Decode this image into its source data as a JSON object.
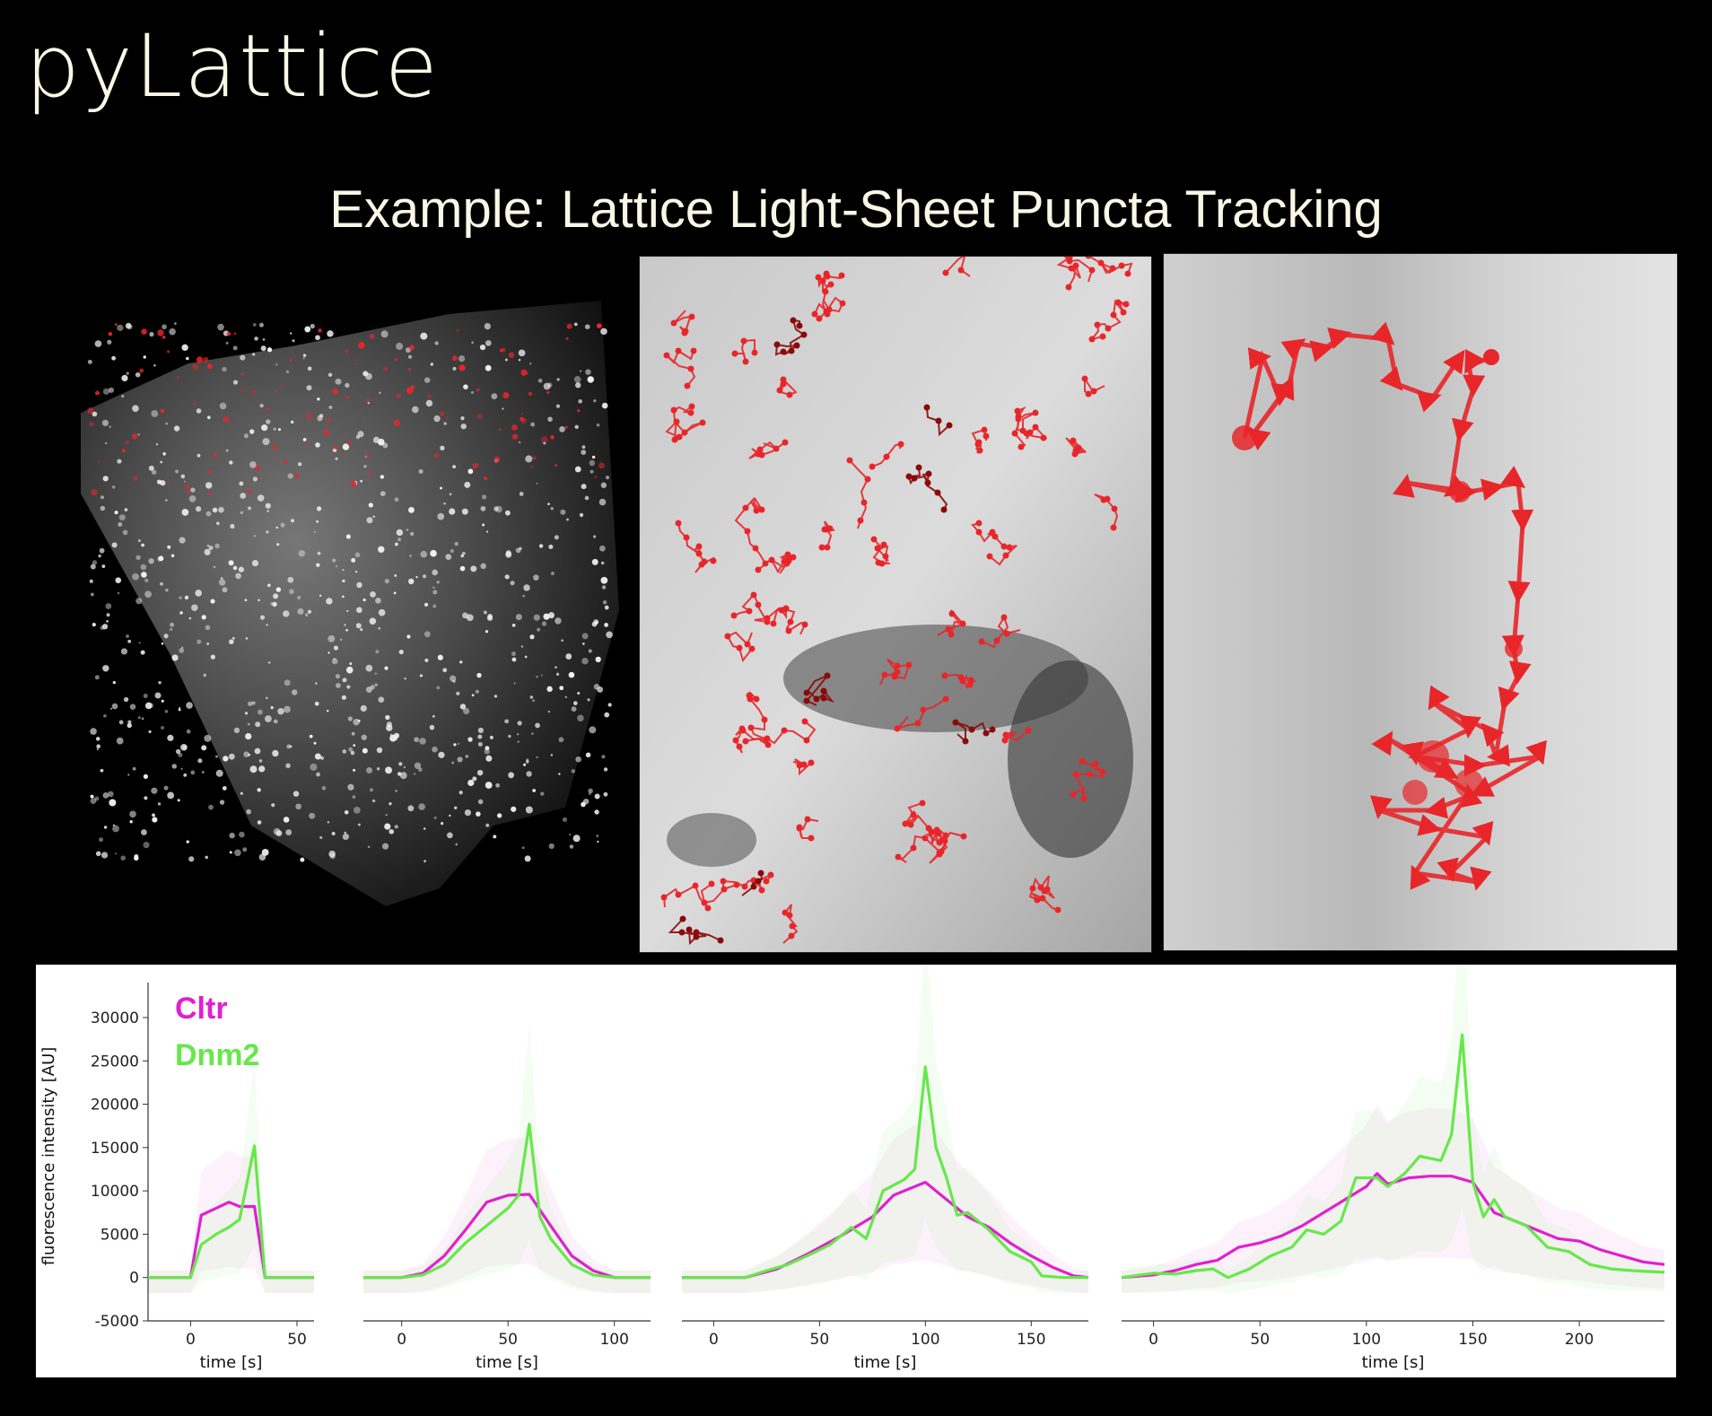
{
  "header": {
    "brand": "pyLattice",
    "subtitle": "Example: Lattice Light-Sheet Puncta Tracking"
  },
  "images": {
    "panel_3d": "3D lattice light-sheet volume with red puncta tracks",
    "panel_tracks": "Grayscale close-up with many red particle trajectories",
    "panel_zoom": "Single zoomed red trajectory with arrow markers"
  },
  "colors": {
    "background": "#000000",
    "text": "#fbf7e6",
    "cltr": "#e020d0",
    "dnm2": "#66e84a",
    "track_red": "#e8262a"
  },
  "chart_data": [
    {
      "type": "line",
      "ylabel": "fluorescence intensity [AU]",
      "xlabel": "time [s]",
      "xlim": [
        -20,
        58
      ],
      "ylim": [
        -5000,
        33000
      ],
      "yticks": [
        -5000,
        0,
        5000,
        10000,
        15000,
        20000,
        25000,
        30000
      ],
      "xticks": [
        0,
        50
      ],
      "legend": [
        "Cltr",
        "Dnm2"
      ],
      "series": [
        {
          "name": "Cltr",
          "x": [
            -20,
            -10,
            0,
            5,
            12,
            18,
            23,
            30,
            35,
            45,
            58
          ],
          "y": [
            0,
            0,
            0,
            7200,
            8000,
            8700,
            8200,
            8200,
            0,
            0,
            0
          ]
        },
        {
          "name": "Dnm2",
          "x": [
            -20,
            -10,
            0,
            5,
            12,
            18,
            23,
            30,
            35,
            45,
            58
          ],
          "y": [
            0,
            0,
            0,
            3800,
            5000,
            5800,
            6700,
            15200,
            0,
            0,
            0
          ]
        }
      ]
    },
    {
      "type": "line",
      "xlabel": "time [s]",
      "xlim": [
        -18,
        117
      ],
      "ylim": [
        -5000,
        33000
      ],
      "xticks": [
        0,
        50,
        100
      ],
      "series": [
        {
          "name": "Cltr",
          "x": [
            -18,
            -10,
            0,
            10,
            20,
            30,
            40,
            50,
            60,
            70,
            80,
            90,
            100,
            117
          ],
          "y": [
            0,
            0,
            0,
            500,
            2500,
            5500,
            8700,
            9500,
            9600,
            6000,
            2500,
            800,
            0,
            0
          ]
        },
        {
          "name": "Dnm2",
          "x": [
            -18,
            -10,
            0,
            10,
            20,
            30,
            40,
            50,
            55,
            60,
            65,
            70,
            80,
            90,
            100,
            117
          ],
          "y": [
            0,
            0,
            0,
            300,
            1500,
            4000,
            6000,
            8000,
            9500,
            17700,
            7000,
            4500,
            1500,
            300,
            0,
            0
          ]
        }
      ]
    },
    {
      "type": "line",
      "xlabel": "time [s]",
      "xlim": [
        -15,
        177
      ],
      "ylim": [
        -5000,
        33000
      ],
      "xticks": [
        0,
        50,
        100,
        150
      ],
      "series": [
        {
          "name": "Cltr",
          "x": [
            -15,
            0,
            15,
            30,
            45,
            60,
            75,
            85,
            95,
            100,
            110,
            120,
            130,
            140,
            150,
            160,
            170,
            177
          ],
          "y": [
            0,
            0,
            0,
            1000,
            2800,
            4800,
            7000,
            9500,
            10500,
            11000,
            9000,
            7000,
            5800,
            4000,
            2500,
            1200,
            200,
            0
          ]
        },
        {
          "name": "Dnm2",
          "x": [
            -15,
            0,
            15,
            25,
            35,
            45,
            55,
            65,
            72,
            80,
            90,
            95,
            100,
            105,
            110,
            115,
            120,
            130,
            140,
            150,
            155,
            165,
            177
          ],
          "y": [
            0,
            0,
            0,
            800,
            1500,
            2600,
            3800,
            5800,
            4500,
            10000,
            11300,
            12500,
            24300,
            15000,
            11500,
            7200,
            7500,
            5500,
            3000,
            1800,
            200,
            0,
            0
          ]
        }
      ]
    },
    {
      "type": "line",
      "xlabel": "time [s]",
      "xlim": [
        -15,
        240
      ],
      "ylim": [
        -5000,
        33000
      ],
      "xticks": [
        0,
        50,
        100,
        150,
        200
      ],
      "series": [
        {
          "name": "Cltr",
          "x": [
            -15,
            0,
            10,
            20,
            30,
            40,
            50,
            60,
            70,
            80,
            90,
            100,
            105,
            110,
            120,
            130,
            140,
            150,
            160,
            170,
            180,
            190,
            200,
            210,
            220,
            230,
            240
          ],
          "y": [
            0,
            300,
            800,
            1500,
            2000,
            3500,
            4000,
            4800,
            6000,
            7500,
            9000,
            10500,
            12000,
            10800,
            11500,
            11700,
            11700,
            11000,
            7500,
            6500,
            5500,
            4500,
            4200,
            3200,
            2500,
            1800,
            1500
          ]
        },
        {
          "name": "Dnm2",
          "x": [
            -15,
            0,
            10,
            20,
            28,
            35,
            45,
            55,
            65,
            72,
            80,
            88,
            95,
            105,
            110,
            118,
            125,
            135,
            140,
            145,
            150,
            155,
            160,
            165,
            175,
            185,
            195,
            205,
            215,
            225,
            240
          ],
          "y": [
            0,
            500,
            400,
            800,
            1000,
            0,
            1000,
            2500,
            3500,
            5500,
            5000,
            6500,
            11500,
            11500,
            10500,
            12000,
            14000,
            13500,
            16500,
            28000,
            11000,
            7000,
            9000,
            7000,
            6000,
            3500,
            3000,
            1500,
            1000,
            800,
            600
          ]
        }
      ]
    }
  ]
}
